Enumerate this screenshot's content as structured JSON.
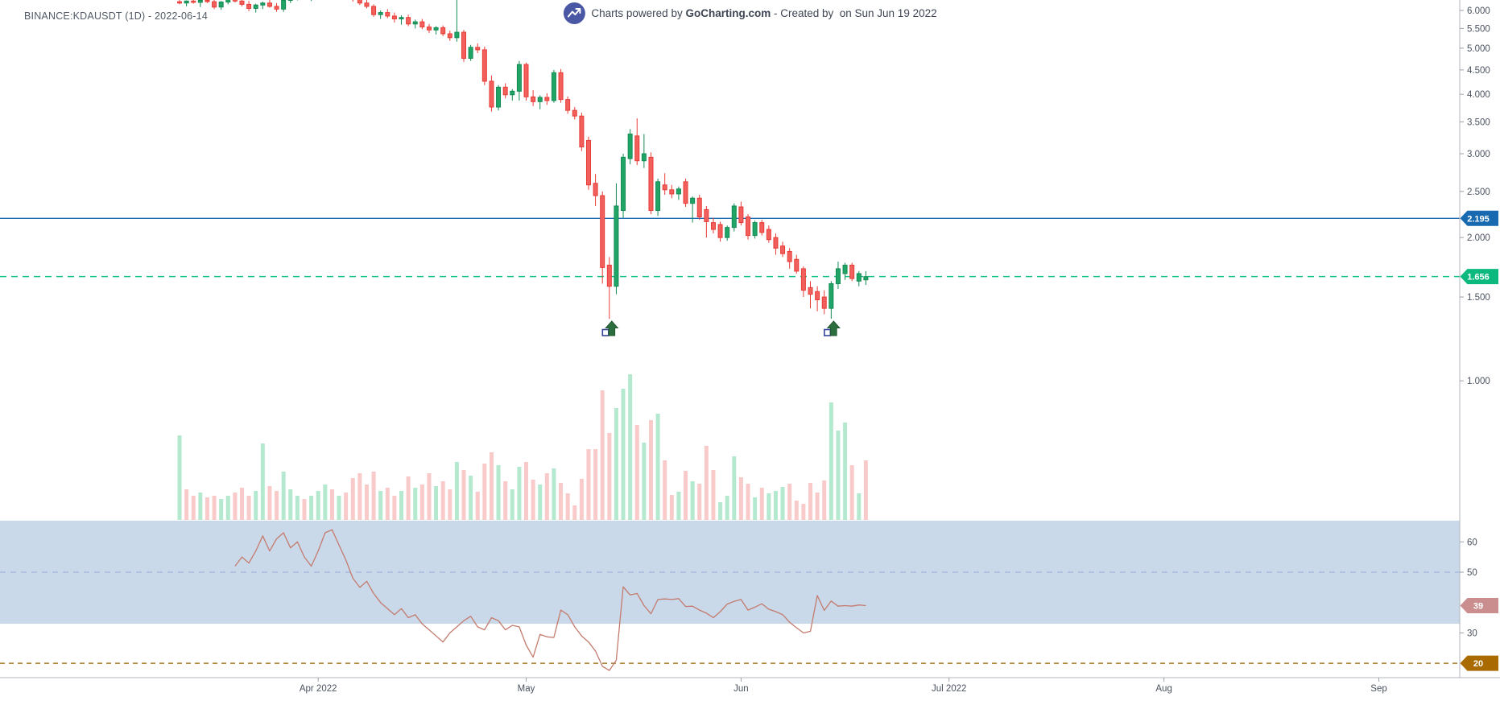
{
  "app": {
    "title": "BINANCE:KDAUSDT (1D) - 2022-06-14",
    "watermark": {
      "powered": "Charts powered by ",
      "brand": "GoCharting.com",
      "created": " - Created by  on Sun Jun 19 2022"
    }
  },
  "colors": {
    "candle_up_fill": "#21a567",
    "candle_up_border": "#128a53",
    "candle_down_fill": "#f1605c",
    "candle_down_border": "#e83c37",
    "vol_up": "#b5e9cf",
    "vol_down": "#f9caca",
    "line_blue": "#1f6cb0",
    "tag_blue": "#176ab0",
    "line_green": "#0dc189",
    "tag_green": "#0bb97e",
    "rsi_line": "#c47b6e",
    "rsi_band": "#c9d9e9",
    "rsi_mid_dash": "#97aad5",
    "line_20": "#9a6200",
    "tag_20": "#a96a00",
    "tag_39": "#ca8e8e",
    "axis_line": "#b0b5bb",
    "axis_text": "#4a5260",
    "marker_fill": "#2c6e3e",
    "marker_border": "#235731",
    "marker_square_border": "#34459c",
    "logo_bg": "#4a57a5"
  },
  "price_axis": {
    "tick_labels": [
      "6.000",
      "5.500",
      "5.000",
      "4.500",
      "4.000",
      "3.500",
      "3.000",
      "2.500",
      "2.000",
      "1.500",
      "1.000"
    ],
    "tags": [
      {
        "label": "2.195",
        "value": 2.195,
        "type": "blue"
      },
      {
        "label": "1.656",
        "value": 1.656,
        "type": "green"
      }
    ]
  },
  "lines": {
    "horizontal_blue": 2.195,
    "horizontal_green_dashed": 1.656
  },
  "rsi": {
    "tick_labels": [
      60,
      50,
      30
    ],
    "band": [
      33,
      67
    ],
    "mid_dashed": 50,
    "lower_dashed": 20,
    "tag_20_label": "20",
    "last_value": 39,
    "last_tag_label": "39",
    "values": [
      [
        8,
        52
      ],
      [
        9,
        55
      ],
      [
        10,
        53
      ],
      [
        11,
        57
      ],
      [
        12,
        62
      ],
      [
        13,
        57
      ],
      [
        14,
        61
      ],
      [
        15,
        63
      ],
      [
        16,
        58
      ],
      [
        17,
        60
      ],
      [
        18,
        55
      ],
      [
        19,
        52
      ],
      [
        20,
        57
      ],
      [
        21,
        63
      ],
      [
        22,
        64
      ],
      [
        23,
        59
      ],
      [
        24,
        54
      ],
      [
        25,
        48
      ],
      [
        26,
        45
      ],
      [
        27,
        47
      ],
      [
        28,
        43
      ],
      [
        29,
        40
      ],
      [
        30,
        38
      ],
      [
        31,
        36
      ],
      [
        32,
        38
      ],
      [
        33,
        35
      ],
      [
        34,
        36
      ],
      [
        35,
        33
      ],
      [
        36,
        31
      ],
      [
        37,
        29
      ],
      [
        38,
        27
      ],
      [
        39,
        30
      ],
      [
        40,
        32
      ],
      [
        41,
        34
      ],
      [
        42,
        35.5
      ],
      [
        43,
        32
      ],
      [
        44,
        31
      ],
      [
        45,
        35
      ],
      [
        46,
        34
      ],
      [
        47,
        31
      ],
      [
        48,
        32.5
      ],
      [
        49,
        32
      ],
      [
        50,
        26
      ],
      [
        51,
        22
      ],
      [
        52,
        29.5
      ],
      [
        53,
        28.7
      ],
      [
        54,
        28.5
      ],
      [
        55,
        37.5
      ],
      [
        56,
        36
      ],
      [
        57,
        32
      ],
      [
        58,
        29
      ],
      [
        59,
        27
      ],
      [
        60,
        24
      ],
      [
        61,
        19
      ],
      [
        62,
        17.6
      ],
      [
        63,
        21
      ],
      [
        64,
        45.2
      ],
      [
        65,
        42.5
      ],
      [
        66,
        43
      ],
      [
        67,
        39
      ],
      [
        68,
        36.3
      ],
      [
        69,
        41
      ],
      [
        70,
        41.2
      ],
      [
        71,
        41
      ],
      [
        72,
        41.3
      ],
      [
        73,
        38.7
      ],
      [
        74,
        38.8
      ],
      [
        75,
        37.5
      ],
      [
        76,
        36.5
      ],
      [
        77,
        35
      ],
      [
        78,
        37
      ],
      [
        79,
        39.5
      ],
      [
        80,
        40.4
      ],
      [
        81,
        41
      ],
      [
        82,
        37.5
      ],
      [
        83,
        38.5
      ],
      [
        84,
        39.6
      ],
      [
        85,
        37.8
      ],
      [
        86,
        37
      ],
      [
        87,
        36
      ],
      [
        88,
        33.5
      ],
      [
        89,
        31.7
      ],
      [
        90,
        30
      ],
      [
        91,
        30.5
      ],
      [
        92,
        42.3
      ],
      [
        93,
        37.4
      ],
      [
        94,
        40.5
      ],
      [
        95,
        38.8
      ],
      [
        96,
        39
      ],
      [
        97,
        38.8
      ],
      [
        98,
        39.2
      ],
      [
        99,
        39
      ]
    ]
  },
  "time_axis": [
    {
      "label": "Apr 2022",
      "d": 20
    },
    {
      "label": "May",
      "d": 50
    },
    {
      "label": "Jun",
      "d": 81
    },
    {
      "label": "Jul 2022",
      "d": 111
    },
    {
      "label": "Aug",
      "d": 142
    },
    {
      "label": "Sep",
      "d": 173
    }
  ],
  "markers": [
    {
      "d": 62,
      "type": "buy-arrow"
    },
    {
      "d": 94,
      "type": "buy-arrow"
    }
  ],
  "chart_data": {
    "type": "candlestick",
    "symbol": "BINANCE:KDAUSDT",
    "interval": "1D",
    "scale": "log",
    "start_date": "2022-03-12",
    "frequency": "daily",
    "visible_price_range": [
      1.0,
      6.31
    ],
    "candles": [
      [
        6.26,
        6.34,
        6.18,
        6.22
      ],
      [
        6.22,
        6.3,
        6.12,
        6.28
      ],
      [
        6.28,
        6.36,
        6.2,
        6.24
      ],
      [
        6.24,
        6.32,
        6.1,
        6.3
      ],
      [
        6.3,
        6.38,
        6.22,
        6.26
      ],
      [
        6.26,
        6.32,
        6.04,
        6.1
      ],
      [
        6.1,
        6.28,
        6.02,
        6.25
      ],
      [
        6.25,
        6.38,
        6.18,
        6.34
      ],
      [
        6.34,
        6.42,
        6.24,
        6.28
      ],
      [
        6.28,
        6.36,
        6.12,
        6.18
      ],
      [
        6.18,
        6.28,
        5.98,
        6.06
      ],
      [
        6.06,
        6.2,
        5.94,
        6.16
      ],
      [
        6.16,
        6.26,
        6.04,
        6.22
      ],
      [
        6.22,
        6.32,
        6.08,
        6.12
      ],
      [
        6.12,
        6.22,
        5.96,
        6.04
      ],
      [
        6.04,
        6.34,
        5.96,
        6.3
      ],
      [
        6.3,
        6.46,
        6.22,
        6.42
      ],
      [
        6.42,
        6.52,
        6.3,
        6.47
      ],
      [
        6.47,
        6.56,
        6.32,
        6.38
      ],
      [
        6.38,
        6.5,
        6.28,
        6.45
      ],
      [
        6.45,
        6.6,
        6.33,
        6.55
      ],
      [
        6.55,
        6.7,
        6.42,
        6.63
      ],
      [
        6.63,
        6.74,
        6.46,
        6.52
      ],
      [
        6.52,
        6.66,
        6.36,
        6.6
      ],
      [
        6.6,
        6.72,
        6.44,
        6.5
      ],
      [
        6.5,
        6.62,
        6.26,
        6.36
      ],
      [
        6.36,
        6.5,
        6.16,
        6.22
      ],
      [
        6.22,
        6.36,
        6.06,
        6.12
      ],
      [
        6.12,
        6.18,
        5.82,
        5.88
      ],
      [
        5.88,
        6.0,
        5.76,
        5.94
      ],
      [
        5.94,
        6.04,
        5.78,
        5.84
      ],
      [
        5.84,
        5.94,
        5.66,
        5.76
      ],
      [
        5.76,
        5.86,
        5.6,
        5.8
      ],
      [
        5.8,
        5.88,
        5.56,
        5.62
      ],
      [
        5.62,
        5.74,
        5.5,
        5.68
      ],
      [
        5.68,
        5.76,
        5.48,
        5.54
      ],
      [
        5.54,
        5.62,
        5.38,
        5.46
      ],
      [
        5.46,
        5.56,
        5.34,
        5.52
      ],
      [
        5.52,
        5.58,
        5.3,
        5.36
      ],
      [
        5.36,
        5.44,
        5.18,
        5.26
      ],
      [
        5.26,
        6.31,
        5.16,
        5.4
      ],
      [
        5.4,
        5.46,
        4.68,
        4.76
      ],
      [
        4.76,
        5.08,
        4.7,
        5.02
      ],
      [
        5.02,
        5.12,
        4.88,
        4.96
      ],
      [
        4.96,
        5.04,
        4.18,
        4.26
      ],
      [
        4.26,
        4.38,
        3.68,
        3.76
      ],
      [
        3.76,
        4.18,
        3.7,
        4.14
      ],
      [
        4.14,
        4.22,
        3.92,
        3.99
      ],
      [
        3.99,
        4.1,
        3.88,
        4.06
      ],
      [
        4.06,
        4.7,
        3.88,
        4.62
      ],
      [
        4.62,
        4.66,
        3.88,
        3.95
      ],
      [
        3.95,
        4.08,
        3.78,
        3.86
      ],
      [
        3.86,
        3.98,
        3.72,
        3.94
      ],
      [
        3.94,
        4.02,
        3.8,
        3.88
      ],
      [
        3.88,
        4.5,
        3.84,
        4.44
      ],
      [
        4.44,
        4.52,
        3.84,
        3.9
      ],
      [
        3.9,
        3.96,
        3.64,
        3.7
      ],
      [
        3.7,
        3.76,
        3.54,
        3.6
      ],
      [
        3.6,
        3.66,
        3.04,
        3.1
      ],
      [
        3.2,
        3.26,
        2.52,
        2.58
      ],
      [
        2.6,
        2.72,
        2.33,
        2.45
      ],
      [
        2.45,
        2.5,
        1.6,
        1.73
      ],
      [
        1.75,
        1.82,
        1.35,
        1.58
      ],
      [
        1.58,
        2.6,
        1.52,
        2.33
      ],
      [
        2.28,
        3.0,
        2.2,
        2.95
      ],
      [
        2.93,
        3.38,
        2.85,
        3.3
      ],
      [
        3.27,
        3.56,
        2.84,
        2.9
      ],
      [
        2.9,
        3.3,
        2.8,
        3.0
      ],
      [
        2.95,
        3.02,
        2.24,
        2.28
      ],
      [
        2.28,
        2.66,
        2.22,
        2.62
      ],
      [
        2.58,
        2.73,
        2.46,
        2.52
      ],
      [
        2.52,
        2.58,
        2.42,
        2.47
      ],
      [
        2.47,
        2.56,
        2.4,
        2.53
      ],
      [
        2.62,
        2.66,
        2.32,
        2.36
      ],
      [
        2.36,
        2.44,
        2.15,
        2.42
      ],
      [
        2.42,
        2.46,
        2.18,
        2.21
      ],
      [
        2.29,
        2.33,
        2.0,
        2.16
      ],
      [
        2.15,
        2.2,
        2.04,
        2.08
      ],
      [
        2.13,
        2.16,
        1.96,
        2.0
      ],
      [
        2.0,
        2.12,
        1.97,
        2.1
      ],
      [
        2.1,
        2.36,
        2.06,
        2.33
      ],
      [
        2.32,
        2.38,
        2.12,
        2.15
      ],
      [
        2.21,
        2.24,
        1.98,
        2.02
      ],
      [
        2.02,
        2.17,
        1.99,
        2.15
      ],
      [
        2.15,
        2.18,
        2.02,
        2.05
      ],
      [
        2.08,
        2.12,
        1.95,
        1.98
      ],
      [
        2.0,
        2.04,
        1.84,
        1.9
      ],
      [
        1.92,
        1.96,
        1.82,
        1.85
      ],
      [
        1.87,
        1.9,
        1.72,
        1.78
      ],
      [
        1.8,
        1.84,
        1.68,
        1.7
      ],
      [
        1.72,
        1.74,
        1.5,
        1.55
      ],
      [
        1.57,
        1.62,
        1.42,
        1.52
      ],
      [
        1.54,
        1.58,
        1.4,
        1.48
      ],
      [
        1.5,
        1.55,
        1.38,
        1.42
      ],
      [
        1.42,
        1.62,
        1.35,
        1.6
      ],
      [
        1.6,
        1.78,
        1.56,
        1.72
      ],
      [
        1.68,
        1.77,
        1.63,
        1.75
      ],
      [
        1.75,
        1.77,
        1.62,
        1.64
      ],
      [
        1.62,
        1.7,
        1.58,
        1.68
      ],
      [
        1.63,
        1.7,
        1.59,
        1.656
      ]
    ],
    "volume_rel": [
      [
        105,
        "g"
      ],
      [
        38,
        "p"
      ],
      [
        30,
        "p"
      ],
      [
        34,
        "g"
      ],
      [
        28,
        "p"
      ],
      [
        30,
        "p"
      ],
      [
        26,
        "g"
      ],
      [
        30,
        "g"
      ],
      [
        34,
        "p"
      ],
      [
        40,
        "p"
      ],
      [
        30,
        "p"
      ],
      [
        36,
        "g"
      ],
      [
        95,
        "g"
      ],
      [
        42,
        "p"
      ],
      [
        36,
        "p"
      ],
      [
        60,
        "g"
      ],
      [
        38,
        "g"
      ],
      [
        30,
        "g"
      ],
      [
        26,
        "p"
      ],
      [
        30,
        "g"
      ],
      [
        36,
        "g"
      ],
      [
        44,
        "g"
      ],
      [
        38,
        "p"
      ],
      [
        30,
        "g"
      ],
      [
        34,
        "p"
      ],
      [
        52,
        "p"
      ],
      [
        58,
        "p"
      ],
      [
        44,
        "p"
      ],
      [
        60,
        "p"
      ],
      [
        36,
        "g"
      ],
      [
        40,
        "p"
      ],
      [
        30,
        "p"
      ],
      [
        36,
        "g"
      ],
      [
        54,
        "p"
      ],
      [
        40,
        "g"
      ],
      [
        44,
        "p"
      ],
      [
        58,
        "p"
      ],
      [
        42,
        "g"
      ],
      [
        48,
        "p"
      ],
      [
        38,
        "p"
      ],
      [
        72,
        "g"
      ],
      [
        62,
        "p"
      ],
      [
        55,
        "g"
      ],
      [
        35,
        "p"
      ],
      [
        70,
        "p"
      ],
      [
        84,
        "p"
      ],
      [
        68,
        "g"
      ],
      [
        48,
        "p"
      ],
      [
        38,
        "g"
      ],
      [
        66,
        "g"
      ],
      [
        72,
        "p"
      ],
      [
        50,
        "p"
      ],
      [
        44,
        "g"
      ],
      [
        58,
        "p"
      ],
      [
        64,
        "g"
      ],
      [
        46,
        "p"
      ],
      [
        33,
        "p"
      ],
      [
        18,
        "p"
      ],
      [
        51,
        "p"
      ],
      [
        88,
        "p"
      ],
      [
        88,
        "p"
      ],
      [
        161,
        "p"
      ],
      [
        108,
        "p"
      ],
      [
        139,
        "g"
      ],
      [
        163,
        "g"
      ],
      [
        181,
        "g"
      ],
      [
        118,
        "p"
      ],
      [
        96,
        "g"
      ],
      [
        124,
        "p"
      ],
      [
        132,
        "g"
      ],
      [
        74,
        "p"
      ],
      [
        31,
        "p"
      ],
      [
        35,
        "g"
      ],
      [
        61,
        "p"
      ],
      [
        48,
        "g"
      ],
      [
        45,
        "p"
      ],
      [
        92,
        "p"
      ],
      [
        62,
        "p"
      ],
      [
        22,
        "g"
      ],
      [
        30,
        "g"
      ],
      [
        79,
        "g"
      ],
      [
        53,
        "p"
      ],
      [
        45,
        "p"
      ],
      [
        28,
        "g"
      ],
      [
        40,
        "p"
      ],
      [
        33,
        "g"
      ],
      [
        36,
        "g"
      ],
      [
        41,
        "g"
      ],
      [
        45,
        "p"
      ],
      [
        24,
        "p"
      ],
      [
        20,
        "p"
      ],
      [
        46,
        "p"
      ],
      [
        34,
        "p"
      ],
      [
        49,
        "p"
      ],
      [
        146,
        "g"
      ],
      [
        111,
        "g"
      ],
      [
        121,
        "g"
      ],
      [
        68,
        "p"
      ],
      [
        33,
        "g"
      ],
      [
        74,
        "p"
      ]
    ]
  }
}
